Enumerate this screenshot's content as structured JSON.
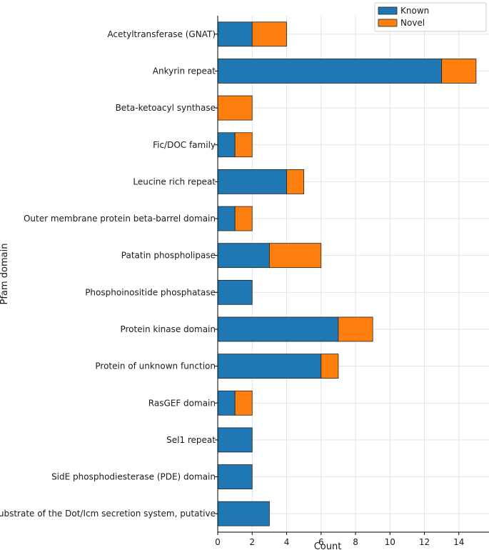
{
  "chart_data": {
    "type": "bar",
    "orientation": "horizontal",
    "stacked": true,
    "title": "",
    "xlabel": "Count",
    "ylabel": "Pfam domain",
    "xlim": [
      0,
      15.75
    ],
    "xticks": [
      0,
      2,
      4,
      6,
      8,
      10,
      12,
      14
    ],
    "grid": true,
    "legend_position": "top-right",
    "categories": [
      "Acetyltransferase (GNAT)",
      "Ankyrin repeat",
      "Beta-ketoacyl synthase",
      "Fic/DOC family",
      "Leucine rich repeat",
      "Outer membrane protein beta-barrel domain",
      "Patatin phospholipase",
      "Phosphoinositide phosphatase",
      "Protein kinase domain",
      "Protein of unknown function",
      "RasGEF domain",
      "Sel1 repeat",
      "SidE phosphodiesterase (PDE) domain",
      "Substrate of the Dot/Icm secretion system, putative"
    ],
    "series": [
      {
        "name": "Known",
        "color": "#1f77b4",
        "values": [
          2,
          13,
          0,
          1,
          4,
          1,
          3,
          2,
          7,
          6,
          1,
          2,
          2,
          3
        ]
      },
      {
        "name": "Novel",
        "color": "#ff7f0e",
        "values": [
          2,
          2,
          2,
          1,
          1,
          1,
          3,
          0,
          2,
          1,
          1,
          0,
          0,
          0
        ]
      }
    ]
  }
}
